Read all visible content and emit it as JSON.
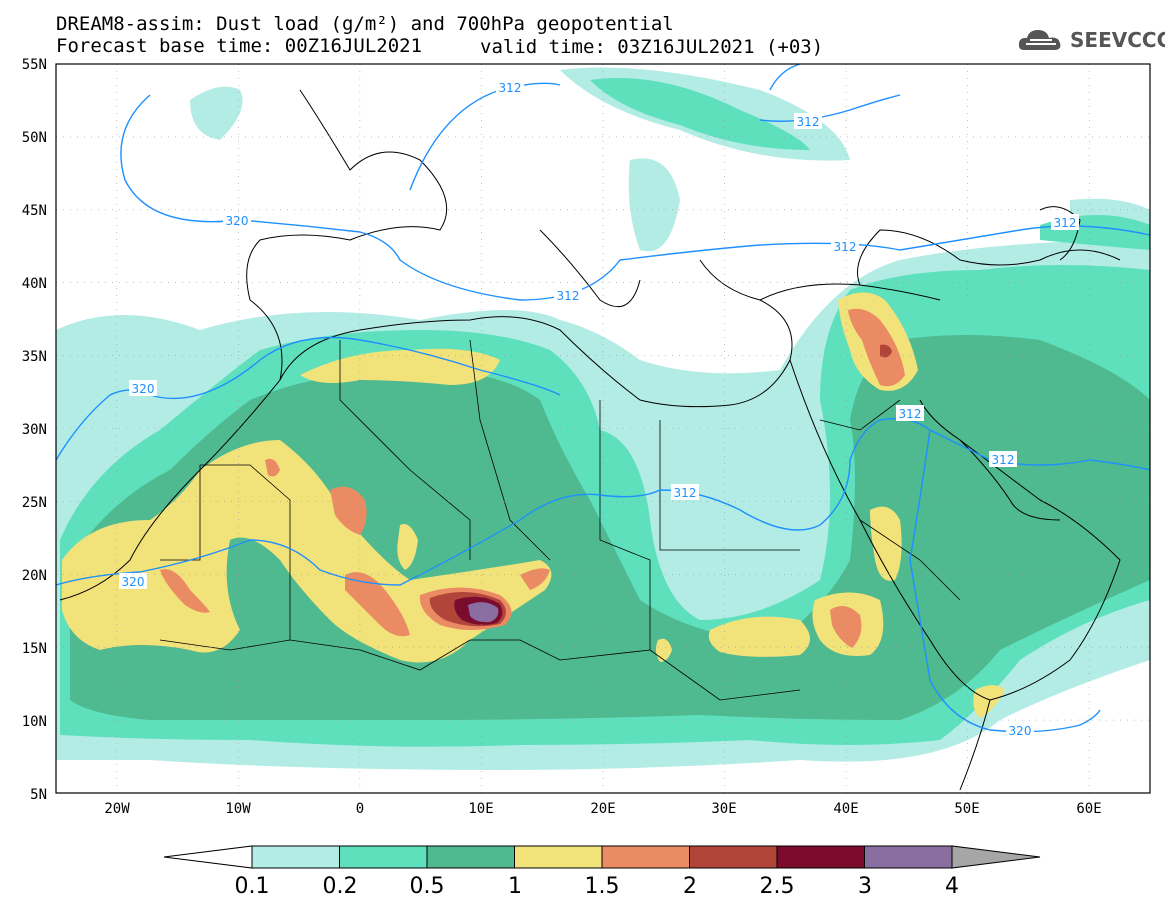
{
  "header": {
    "title_line1": "DREAM8-assim: Dust load (g/m²) and 700hPa geopotential",
    "title_line2": "Forecast base time: 00Z16JUL2021",
    "valid_time": "valid time: 03Z16JUL2021 (+03)",
    "logo_text": "SEEVCCC",
    "logo_icon": "cloud-logo-icon"
  },
  "map": {
    "lon_range": [
      -25,
      65
    ],
    "lat_range": [
      5,
      55
    ],
    "lat_labels": [
      "55N",
      "50N",
      "45N",
      "40N",
      "35N",
      "30N",
      "25N",
      "20N",
      "15N",
      "10N",
      "5N"
    ],
    "lon_labels": [
      "20W",
      "10W",
      "0",
      "10E",
      "20E",
      "30E",
      "40E",
      "50E",
      "60E"
    ],
    "contour_labels": [
      "312",
      "312",
      "312",
      "312",
      "312",
      "312",
      "312",
      "312",
      "320",
      "320",
      "320",
      "320"
    ],
    "contour_color": "#1e90ff",
    "coastline_color": "#000000"
  },
  "colorbar": {
    "labels": [
      "0.1",
      "0.2",
      "0.5",
      "1",
      "1.5",
      "2",
      "2.5",
      "3",
      "4"
    ],
    "colors": [
      "#b3ece4",
      "#5ee0bd",
      "#4fb98f",
      "#f2e27a",
      "#eb8b64",
      "#b2453a",
      "#7b0c2e",
      "#8b6ea1",
      "#a6a6a6"
    ],
    "under_color": "#ffffff"
  }
}
